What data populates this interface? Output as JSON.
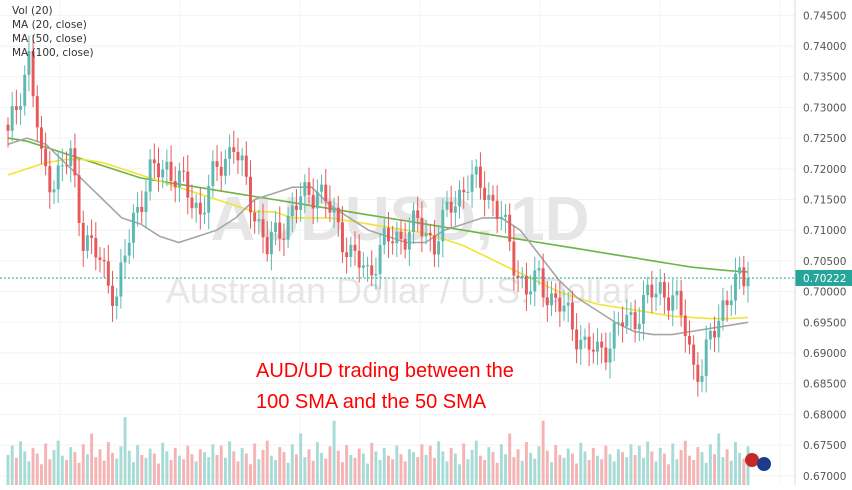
{
  "chart_data": {
    "type": "candlestick",
    "symbol": "AUDUSD",
    "interval": "1D",
    "watermark": {
      "symbol_line": "AUDUSD, 1D",
      "name_line": "Australian Dollar / U.S. Dollar"
    },
    "indicators": [
      "Vol (20)",
      "MA (20, close)",
      "MA (50, close)",
      "MA (100, close)"
    ],
    "annotation": [
      "AUD/UD trading between the",
      "100 SMA and the 50 SMA"
    ],
    "last_price": "0.70222",
    "y_ticks": [
      "0.74500",
      "0.74000",
      "0.73500",
      "0.73000",
      "0.72500",
      "0.72000",
      "0.71500",
      "0.71000",
      "0.70500",
      "0.70000",
      "0.69500",
      "0.69000",
      "0.68500",
      "0.68000",
      "0.67500",
      "0.67000"
    ],
    "ylim": [
      0.6685,
      0.7475
    ],
    "colors": {
      "up": "#5fb9b0",
      "down": "#e8585b",
      "up_volume": "#a7dcd6",
      "down_volume": "#f5b3b4",
      "ma20": "#a6a6a6",
      "ma50": "#f2e337",
      "ma100": "#6ab545",
      "price_line": "#26a69a",
      "annotation": "#ff0000"
    },
    "anchors": [
      [
        0,
        0.725
      ],
      [
        3,
        0.733
      ],
      [
        5,
        0.738
      ],
      [
        8,
        0.721
      ],
      [
        11,
        0.718
      ],
      [
        15,
        0.722
      ],
      [
        18,
        0.709
      ],
      [
        22,
        0.705
      ],
      [
        26,
        0.699
      ],
      [
        30,
        0.712
      ],
      [
        34,
        0.719
      ],
      [
        38,
        0.7205
      ],
      [
        42,
        0.717
      ],
      [
        46,
        0.713
      ],
      [
        50,
        0.72
      ],
      [
        54,
        0.724
      ],
      [
        58,
        0.715
      ],
      [
        62,
        0.707
      ],
      [
        66,
        0.711
      ],
      [
        70,
        0.715
      ],
      [
        74,
        0.717
      ],
      [
        78,
        0.712
      ],
      [
        82,
        0.706
      ],
      [
        86,
        0.703
      ],
      [
        90,
        0.708
      ],
      [
        94,
        0.709
      ],
      [
        98,
        0.711
      ],
      [
        102,
        0.708
      ],
      [
        106,
        0.714
      ],
      [
        110,
        0.718
      ],
      [
        114,
        0.717
      ],
      [
        118,
        0.712
      ],
      [
        121,
        0.705
      ],
      [
        124,
        0.7
      ],
      [
        127,
        0.702
      ],
      [
        130,
        0.699
      ],
      [
        134,
        0.696
      ],
      [
        138,
        0.691
      ],
      [
        141,
        0.69
      ],
      [
        144,
        0.692
      ],
      [
        147,
        0.695
      ],
      [
        150,
        0.696
      ],
      [
        153,
        0.699
      ],
      [
        156,
        0.7005
      ],
      [
        159,
        0.699
      ],
      [
        162,
        0.694
      ],
      [
        164,
        0.688
      ],
      [
        166,
        0.687
      ],
      [
        168,
        0.692
      ],
      [
        171,
        0.698
      ],
      [
        174,
        0.701
      ],
      [
        177,
        0.7022
      ]
    ],
    "ma20": [
      0.724,
      0.725,
      0.724,
      0.721,
      0.718,
      0.715,
      0.712,
      0.711,
      0.709,
      0.708,
      0.709,
      0.71,
      0.712,
      0.715,
      0.716,
      0.717,
      0.717,
      0.714,
      0.712,
      0.71,
      0.709,
      0.708,
      0.708,
      0.71,
      0.711,
      0.712,
      0.712,
      0.71,
      0.706,
      0.702,
      0.699,
      0.697,
      0.695,
      0.6935,
      0.693,
      0.693,
      0.6935,
      0.694,
      0.6945,
      0.695
    ],
    "ma50": [
      0.719,
      0.72,
      0.721,
      0.7215,
      0.7215,
      0.721,
      0.72,
      0.719,
      0.718,
      0.717,
      0.716,
      0.715,
      0.714,
      0.713,
      0.713,
      0.712,
      0.712,
      0.712,
      0.7115,
      0.711,
      0.7105,
      0.71,
      0.7095,
      0.7085,
      0.7075,
      0.706,
      0.7045,
      0.703,
      0.7015,
      0.7,
      0.699,
      0.698,
      0.6975,
      0.697,
      0.6965,
      0.696,
      0.6958,
      0.6956,
      0.6956,
      0.6958
    ],
    "ma100": [
      0.725,
      0.7245,
      0.7235,
      0.7225,
      0.7215,
      0.7205,
      0.7195,
      0.7185,
      0.718,
      0.7175,
      0.717,
      0.7165,
      0.716,
      0.7155,
      0.715,
      0.7145,
      0.714,
      0.7135,
      0.713,
      0.7125,
      0.712,
      0.7115,
      0.711,
      0.7105,
      0.71,
      0.7095,
      0.709,
      0.7085,
      0.708,
      0.7075,
      0.707,
      0.7065,
      0.706,
      0.7055,
      0.705,
      0.7045,
      0.704,
      0.7037,
      0.7034,
      0.7032
    ],
    "volumes": [
      0.42,
      0.55,
      0.38,
      0.61,
      0.47,
      0.33,
      0.52,
      0.44,
      0.29,
      0.58,
      0.36,
      0.49,
      0.62,
      0.41,
      0.35,
      0.53,
      0.46,
      0.31,
      0.57,
      0.43,
      0.72,
      0.39,
      0.5,
      0.34,
      0.6,
      0.45,
      0.37,
      0.54,
      0.9,
      0.48,
      0.32,
      0.56,
      0.42,
      0.38,
      0.51,
      0.44,
      0.3,
      0.59,
      0.47,
      0.35,
      0.52,
      0.41,
      0.36,
      0.55,
      0.43,
      0.33,
      0.5,
      0.46,
      0.39,
      0.57
    ],
    "volume_range": [
      0,
      1
    ]
  },
  "price_axis_labels": [
    "0.74500",
    "0.74000",
    "0.73500",
    "0.73000",
    "0.72500",
    "0.72000",
    "0.71500",
    "0.71000",
    "0.70500",
    "0.70000",
    "0.69500",
    "0.69000",
    "0.68500",
    "0.68000",
    "0.67500",
    "0.67000"
  ]
}
